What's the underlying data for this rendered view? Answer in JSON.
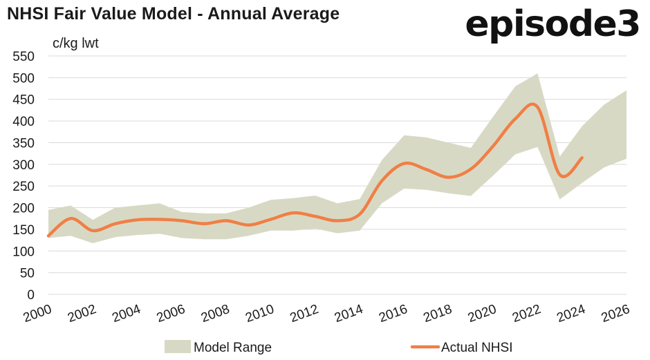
{
  "title": "NHSI Fair Value Model - Annual Average",
  "logo": "episode3",
  "chart_data": {
    "type": "line",
    "title": "NHSI Fair Value Model - Annual Average",
    "ylabel": "c/kg lwt",
    "xlabel": "",
    "xlim": [
      2000,
      2026
    ],
    "ylim": [
      0,
      550
    ],
    "yticks": [
      0,
      50,
      100,
      150,
      200,
      250,
      300,
      350,
      400,
      450,
      500,
      550
    ],
    "xticks": [
      2000,
      2002,
      2004,
      2006,
      2008,
      2010,
      2012,
      2014,
      2016,
      2018,
      2020,
      2022,
      2024,
      2026
    ],
    "grid": "horizontal",
    "legend": "bottom",
    "colors": {
      "band": "#d8d9c5",
      "line": "#f07f45",
      "grid": "#d9d9d9"
    },
    "series": [
      {
        "name": "Model Range",
        "type": "band",
        "x": [
          2000,
          2001,
          2002,
          2003,
          2004,
          2005,
          2006,
          2007,
          2008,
          2009,
          2010,
          2011,
          2012,
          2013,
          2014,
          2015,
          2016,
          2017,
          2018,
          2019,
          2020,
          2021,
          2022,
          2023,
          2024,
          2025,
          2026
        ],
        "upper": [
          195,
          205,
          172,
          200,
          205,
          210,
          190,
          187,
          187,
          200,
          218,
          222,
          228,
          210,
          220,
          310,
          367,
          362,
          350,
          338,
          410,
          480,
          510,
          318,
          388,
          438,
          471
        ],
        "lower": [
          130,
          135,
          118,
          132,
          137,
          140,
          130,
          127,
          127,
          135,
          147,
          147,
          152,
          141,
          147,
          210,
          244,
          241,
          233,
          227,
          274,
          323,
          340,
          219,
          257,
          293,
          313
        ]
      },
      {
        "name": "Actual NHSI",
        "type": "line",
        "x": [
          2000,
          2001,
          2002,
          2003,
          2004,
          2005,
          2006,
          2007,
          2008,
          2009,
          2010,
          2011,
          2012,
          2013,
          2014,
          2015,
          2016,
          2017,
          2018,
          2019,
          2020,
          2021,
          2022,
          2023,
          2024
        ],
        "y": [
          135,
          175,
          147,
          163,
          172,
          173,
          170,
          163,
          170,
          160,
          173,
          188,
          180,
          170,
          185,
          262,
          302,
          288,
          270,
          289,
          342,
          405,
          432,
          276,
          315
        ]
      }
    ]
  }
}
